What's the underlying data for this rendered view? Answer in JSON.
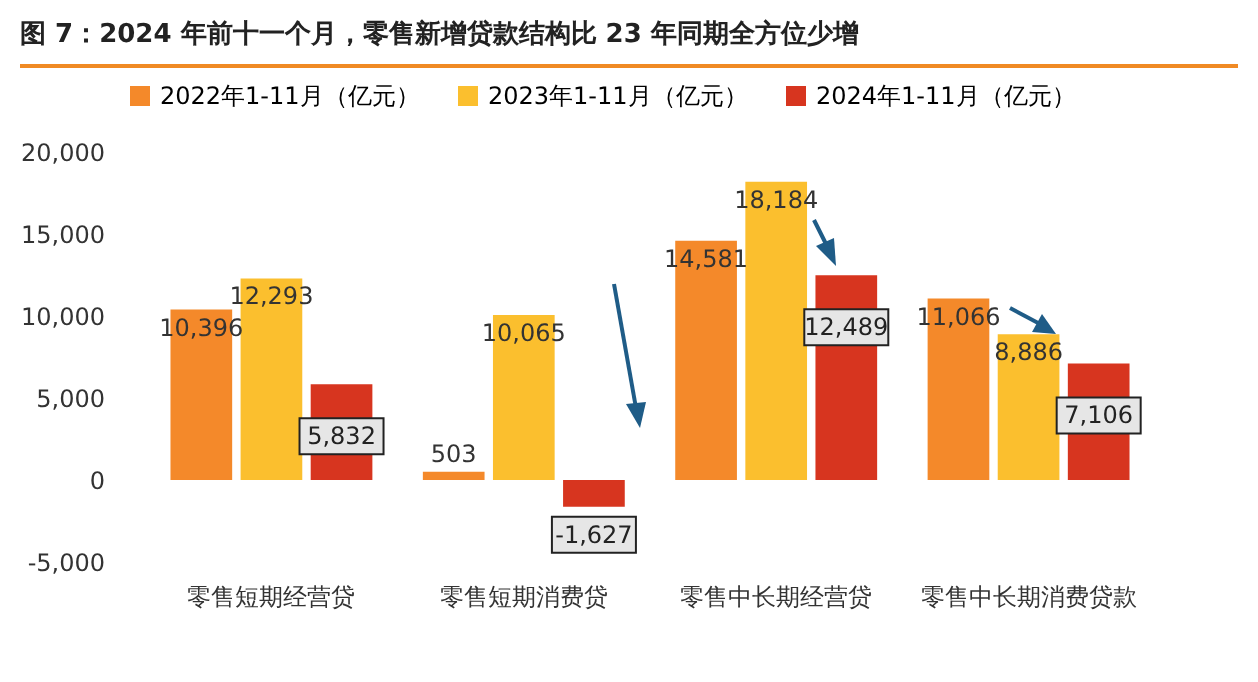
{
  "chart_data": {
    "type": "bar",
    "title": "图 7：2024 年前十一个月，零售新增贷款结构比 23 年同期全方位少增",
    "categories": [
      "零售短期经营贷",
      "零售短期消费贷",
      "零售中长期经营贷",
      "零售中长期消费贷款"
    ],
    "series": [
      {
        "name": "2022年1-11月（亿元）",
        "color": "#f4892a",
        "values": [
          10396,
          503,
          14581,
          11066
        ],
        "value_labels": [
          "10,396",
          "503",
          "14,581",
          "11,066"
        ]
      },
      {
        "name": "2023年1-11月（亿元）",
        "color": "#fbbf2e",
        "values": [
          12293,
          10065,
          18184,
          8886
        ],
        "value_labels": [
          "12,293",
          "10,065",
          "18,184",
          "8,886"
        ]
      },
      {
        "name": "2024年1-11月（亿元）",
        "color": "#d7351f",
        "values": [
          5832,
          -1627,
          12489,
          7106
        ],
        "value_labels": [
          "5,832",
          "-1,627",
          "12,489",
          "7,106"
        ]
      }
    ],
    "ylim": [
      -5000,
      20000
    ],
    "yticks": [
      {
        "value": -5000,
        "label": "-5,000"
      },
      0,
      {
        "value": 5000,
        "label": "5,000"
      },
      {
        "value": 10000,
        "label": "10,000"
      },
      {
        "value": 15000,
        "label": "15,000"
      },
      {
        "value": 20000,
        "label": "20,000"
      }
    ],
    "legend": "top",
    "grid": false
  }
}
